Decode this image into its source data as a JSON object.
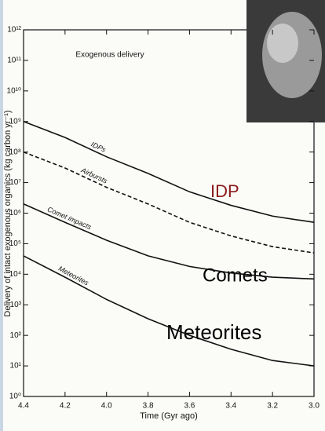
{
  "chart_data": {
    "type": "line",
    "annotation": "Exogenous delivery",
    "y_label": "Delivery of intact exogenous organics (kg carbon yr⁻¹)",
    "x_label": "Time (Gyr ago)",
    "x": [
      4.4,
      4.2,
      4.0,
      3.8,
      3.6,
      3.4,
      3.2,
      3.0
    ],
    "series": [
      {
        "name": "IDPs",
        "color": "#111111",
        "dashed": false,
        "values": [
          1000000000,
          300000000,
          70000000,
          20000000,
          5000000,
          1800000,
          800000,
          500000
        ]
      },
      {
        "name": "Airbursts",
        "color": "#111111",
        "dashed": true,
        "values": [
          100000000,
          30000000,
          7000000,
          2000000,
          500000,
          180000,
          80000,
          50000
        ]
      },
      {
        "name": "Comet impacts",
        "color": "#111111",
        "dashed": false,
        "values": [
          2000000,
          500000,
          130000,
          40000,
          18000,
          11000,
          8000,
          7000
        ]
      },
      {
        "name": "Meteorites",
        "color": "#111111",
        "dashed": false,
        "values": [
          40000,
          8000,
          1500,
          350,
          100,
          35,
          15,
          10
        ]
      }
    ],
    "log_y": true,
    "ylim": [
      1,
      1000000000000
    ],
    "yticks": [
      {
        "value": 1,
        "label": "10⁰"
      },
      {
        "value": 10,
        "label": "10¹"
      },
      {
        "value": 100,
        "label": "10²"
      },
      {
        "value": 1000,
        "label": "10³"
      },
      {
        "value": 10000,
        "label": "10⁴"
      },
      {
        "value": 100000,
        "label": "10⁵"
      },
      {
        "value": 1000000,
        "label": "10⁶"
      },
      {
        "value": 10000000,
        "label": "10⁷"
      },
      {
        "value": 100000000,
        "label": "10⁸"
      },
      {
        "value": 1000000000,
        "label": "10⁹"
      },
      {
        "value": 10000000000,
        "label": "10¹⁰"
      },
      {
        "value": 100000000000,
        "label": "10¹¹"
      },
      {
        "value": 1000000000000,
        "label": "10¹²"
      }
    ],
    "xlim": [
      4.4,
      3.0
    ],
    "xticks": [
      4.4,
      4.2,
      {
        "value": 4,
        "label": "4.0"
      },
      3.8,
      3.6,
      3.4,
      3.2,
      {
        "value": 3,
        "label": "3.0"
      }
    ],
    "overlay_labels": [
      {
        "text": "IDP",
        "color": "#8b1a1a"
      },
      {
        "text": "Comets",
        "color": "#000000"
      },
      {
        "text": "Meteorites",
        "color": "#000000"
      }
    ]
  }
}
